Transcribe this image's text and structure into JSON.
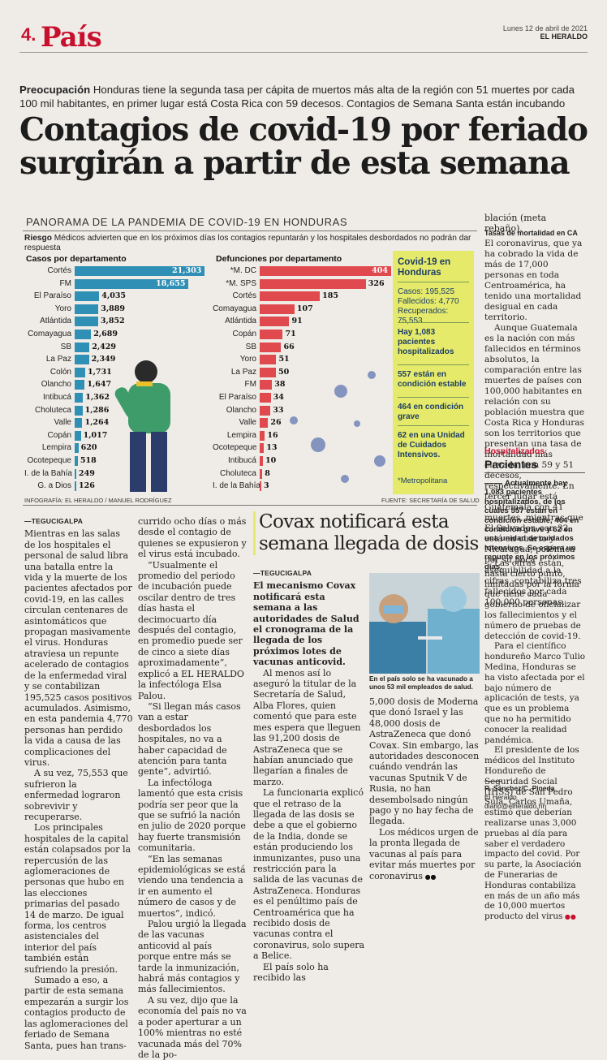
{
  "header": {
    "page_number": "4.",
    "section": "País",
    "date": "Lunes 12 de abril de 2021",
    "brand": "EL HERALDO"
  },
  "lead": {
    "kicker": "Preocupación",
    "text": " Honduras tiene la segunda tasa per cápita de muertos más alta de la región con 51 muertes por cada 100 mil habitantes, en primer lugar está Costa Rica con 59 decesos. Contagios de Semana Santa están incubando"
  },
  "headline": "Contagios de covid-19 por feriado surgirán a partir de esta semana",
  "infographic": {
    "title": "PANORAMA DE LA PANDEMIA DE COVID-19 EN HONDURAS",
    "riesgo_kicker": "Riesgo",
    "riesgo_text": " Médicos advierten que en los próximos días los contagios repuntarán y los hospitales desbordados no podrán dar respuesta",
    "credit": "INFOGRAFÍA: EL HERALDO / MANUEL RODRÍGUEZ",
    "source": "FUENTE: SECRETARÍA DE SALUD",
    "sidebox": {
      "title": "Covid-19 en Honduras",
      "casos": "Casos: 195,525",
      "fallecidos": "Fallecidos: 4,770",
      "recuperados": "Recuperados: 75,553",
      "hospitalizados": "Hay 1,083 pacientes hospitalizados",
      "estable": "557 están en condición estable",
      "grave": "464 en condición grave",
      "uci": "62 en una Unidad de Cuidados Intensivos.",
      "note": "*Metropolitana"
    }
  },
  "chart_data": [
    {
      "type": "bar",
      "title": "Casos por departamento",
      "categories": [
        "Cortés",
        "FM",
        "El Paraíso",
        "Yoro",
        "Atlántida",
        "Comayagua",
        "SB",
        "La Paz",
        "Colón",
        "Olancho",
        "Intibucá",
        "Choluteca",
        "Valle",
        "Copán",
        "Lempira",
        "Ocotepeque",
        "I. de la Bahía",
        "G. a Dios"
      ],
      "values": [
        21303,
        18655,
        4035,
        3889,
        3852,
        2689,
        2429,
        2349,
        1731,
        1647,
        1362,
        1286,
        1264,
        1017,
        620,
        518,
        249,
        126
      ],
      "labels": [
        "21,303",
        "18,655",
        "4,035",
        "3,889",
        "3,852",
        "2,689",
        "2,429",
        "2,349",
        "1,731",
        "1,647",
        "1,362",
        "1,286",
        "1,264",
        "1,017",
        "620",
        "518",
        "249",
        "126"
      ],
      "color": "#2f8fb5"
    },
    {
      "type": "bar",
      "title": "Defunciones por departamento",
      "categories": [
        "*M. DC",
        "*M. SPS",
        "Cortés",
        "Comayagua",
        "Atlántida",
        "Copán",
        "SB",
        "Yoro",
        "La Paz",
        "FM",
        "El Paraíso",
        "Olancho",
        "Valle",
        "Lempira",
        "Ocotepeque",
        "Intibucá",
        "Choluteca",
        "I. de la Bahía"
      ],
      "values": [
        404,
        326,
        185,
        107,
        91,
        71,
        66,
        51,
        50,
        38,
        34,
        33,
        26,
        16,
        13,
        10,
        8,
        3
      ],
      "labels": [
        "404",
        "326",
        "185",
        "107",
        "91",
        "71",
        "66",
        "51",
        "50",
        "38",
        "34",
        "33",
        "26",
        "16",
        "13",
        "10",
        "8",
        "3"
      ],
      "color": "#e0494e"
    }
  ],
  "article": {
    "dateline": "TEGUCIGALPA",
    "col1": [
      "Mientras en las salas de los hospitales el personal de salud libra una batalla entre la vida y la muerte de los pacientes afectados por covid-19, en las calles circulan centenares de asintomáticos que propagan masivamente el virus. Honduras atraviesa un repunte acelerado de contagios de la enfermedad viral y se contabilizan 195,525 casos positivos acumulados. Asimismo, en esta pandemia 4,770 personas han perdido la vida a causa de las complicaciones del virus.",
      "A su vez, 75,553 que sufrieron la enfermedad lograron sobrevivir y recuperarse.",
      "Los principales hospitales de la capital están colapsados por la repercusión de las aglomeraciones de personas que hubo en las elecciones primarias del pasado 14 de marzo. De igual forma, los centros asistenciales del interior del país también están sufriendo la presión.",
      "Sumado a eso, a partir de esta semana empezarán a surgir los contagios producto de las aglomeraciones del feriado de Semana Santa, pues han trans-"
    ],
    "col2": [
      "currido ocho días o más desde el contagio de quienes se expusieron y el virus está incubado.",
      "“Usualmente el promedio del periodo de incubación puede oscilar dentro de tres días hasta el decimocuarto día después del contagio, en promedio puede ser de cinco a siete días aproximadamente”, explicó a EL HERALDO la infectóloga Elsa Palou.",
      "“Si llegan más casos van a estar desbordados los hospitales, no va a haber capacidad de atención para tanta gente”, advirtió.",
      "La infectóloga lamentó que esta crisis podría ser peor que la que se sufrió la nación en julio de 2020 porque hay fuerte transmisión comunitaria.",
      "“En las semanas epidemiológicas se está viendo una tendencia a ir en aumento el número de casos y de muertos”, indicó.",
      "Palou urgió la llegada de las vacunas anticovid al país porque entre más se tarde la inmunización, habrá más contagios y más fallecimientos.",
      "A su vez, dijo que la economía del país no va a poder aperturar a un 100% mientras no esté vacunada más del 70% de la po-"
    ],
    "col4_top": [
      "blación (meta rebaño)."
    ],
    "col4_subhead": "Tasas de mortalidad en CA",
    "col4": [
      "El coronavirus, que ya ha cobrado la vida de más de 17,000 personas en toda Centroamérica, ha tenido una mortalidad desigual en cada territorio.",
      "Aunque Guatemala es la nación con más fallecidos en términos absolutos, la comparación entre las muertes de países con 100,000 habitantes en relación con su población muestra que Costa Rica y Honduras son los territorios que presentan una tasa de mortalidad más elevada, con 59 y 51 decesos, respectivamente. En tercer lugar está Guatemala con 41 muertes, mientras que El Salvador, con 32, está en cuarto y Nicaragua, polémica por su poca asequibilidad a la cifras, contabiliza tres fallecidos por cada 100,000 personas."
    ]
  },
  "covax": {
    "headline": "Covax notificará esta semana llegada de dosis",
    "dateline": "TEGUCIGALPA",
    "lead": "El mecanismo Covax notificará esta semana a las autoridades de Salud el cronograma de la llegada de los próximos lotes de vacunas anticovid.",
    "col1": [
      "Al menos así lo aseguró la titular de la Secretaría de Salud, Alba Flores, quien comentó que para este mes espera que lleguen las 91,200 dosis de AstraZeneca que se habían anunciado que llegarían a finales de marzo.",
      "La funcionaria explicó que el retraso de la llegada de las dosis se debe a que el gobierno de la India, donde se están produciendo los inmunizantes, puso una restricción para la salida de las vacunas de AstraZeneca. Honduras es el penúltimo país de Centroamérica que ha recibido dosis de vacunas contra el coronavirus, solo supera a Belice.",
      "El país solo ha recibido las"
    ],
    "photo_caption": "En el país solo se ha vacunado a unos 53 mil empleados de salud.",
    "col2": [
      "5,000 dosis de Moderna que donó Israel y las 48,000 dosis de AstraZeneca que donó Covax. Sin embargo, las autoridades desconocen cuándo vendrán las vacunas Sputnik V de Rusia, no han desembolsado ningún pago y no hay fecha de llegada.",
      "Los médicos urgen de la pronta llegada de vacunas al país para evitar más muertes por coronavirus"
    ]
  },
  "hospitalizados": {
    "kicker": "Hospitalizados",
    "title": "Pacientes",
    "lead": "Actualmente hay 1,083 pacientes hospitalizados, de los cuales 557 están en condición estable, 464 en condición grave y 62 en una unidad de cuidados intensivos. Se espera un repunte en los próximos días.",
    "body": [
      "Las cifras están, hasta cierto punto, limitadas por la forma que tiene cada gobierno de oficializar los fallecimientos y el número de pruebas de detección de covid-19.",
      "Para el científico hondureño Marco Tulio Medina, Honduras se ha visto afectada por el bajo número de aplicación de tests, ya que es un problema que no ha permitido conocer la realidad pandémica.",
      "El presidente de los médicos del Instituto Hondureño de Seguridad Social (IHSS) de San Pedro Sula, Carlos Umaña, estimó que deberían realizarse unas 3,000 pruebas al día para saber el verdadero impacto del covid. Por su parte, la Asociación de Funerarias de Honduras contabiliza en más de un año más de 10,000 muertos producto del virus"
    ]
  },
  "byline": {
    "authors": "R. Sánchez/C. Pineda",
    "outlet": "El Heraldo",
    "email": "diario@elheraldo.hn"
  }
}
